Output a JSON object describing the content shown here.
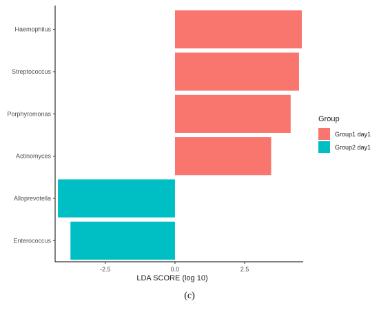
{
  "chart_data": {
    "type": "bar",
    "orientation": "horizontal",
    "xlabel": "LDA SCORE (log 10)",
    "xlim": [
      -4.3,
      4.6
    ],
    "xticks": [
      -2.5,
      0.0,
      2.5
    ],
    "xtick_labels": [
      "-2.5",
      "0.0",
      "2.5"
    ],
    "categories": [
      "Haemophilus",
      "Streptococcus",
      "Porphyromonas",
      "Actinomyces",
      "Alloprevotella",
      "Enterococcus"
    ],
    "values": [
      4.55,
      4.45,
      4.15,
      3.45,
      -4.2,
      -3.75
    ],
    "groups": [
      "Group1 day1",
      "Group1 day1",
      "Group1 day1",
      "Group1 day1",
      "Group2 day1",
      "Group2 day1"
    ],
    "legend": {
      "title": "Group",
      "position": "right",
      "items": [
        {
          "label": "Group1 day1",
          "color": "#f8766d"
        },
        {
          "label": "Group2 day1",
          "color": "#00bfc4"
        }
      ]
    },
    "grid": false
  },
  "caption": "(c)"
}
